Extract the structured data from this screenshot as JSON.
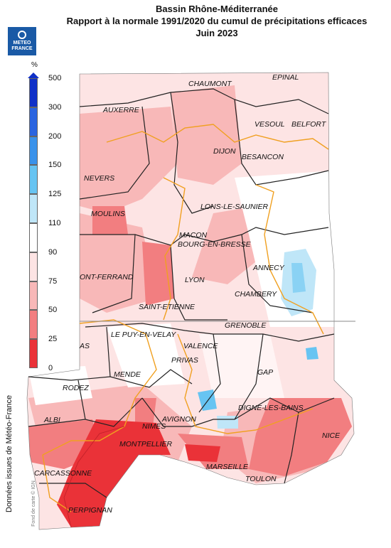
{
  "header": {
    "line1": "Bassin Rhône-Méditerranée",
    "line2": "Rapport à la normale 1991/2020 du cumul de précipitations efficaces",
    "line3": "Juin 2023"
  },
  "logo": {
    "line1": "METEO",
    "line2": "FRANCE"
  },
  "legend": {
    "unit": "%",
    "ticks": [
      "500",
      "300",
      "200",
      "150",
      "125",
      "110",
      "90",
      "75",
      "50",
      "25",
      "0"
    ],
    "classes": [
      {
        "label": "300-500",
        "color": "#1030c8"
      },
      {
        "label": "200-300",
        "color": "#2a64e0"
      },
      {
        "label": "150-200",
        "color": "#3a92ea"
      },
      {
        "label": "125-150",
        "color": "#67c4f2"
      },
      {
        "label": "110-125",
        "color": "#bfe6f8"
      },
      {
        "label": "90-110",
        "color": "#ffffff"
      },
      {
        "label": "75-90",
        "color": "#fde4e4"
      },
      {
        "label": "50-75",
        "color": "#f8b8b8"
      },
      {
        "label": "25-50",
        "color": "#f27e80"
      },
      {
        "label": "0-25",
        "color": "#ea3238"
      }
    ]
  },
  "side_text": "Données issues de Météo-France",
  "credit": "Fond de carte © IGN",
  "cities": [
    {
      "name": "EPINAL"
    },
    {
      "name": "CHAUMONT"
    },
    {
      "name": "AUXERRE"
    },
    {
      "name": "VESOUL"
    },
    {
      "name": "BELFORT"
    },
    {
      "name": "DIJON"
    },
    {
      "name": "BESANCON"
    },
    {
      "name": "NEVERS"
    },
    {
      "name": "LONS-LE-SAUNIER"
    },
    {
      "name": "MOULINS"
    },
    {
      "name": "MACON"
    },
    {
      "name": "BOURG-EN-BRESSE"
    },
    {
      "name": "ANNECY"
    },
    {
      "name": "ONT-FERRAND"
    },
    {
      "name": "LYON"
    },
    {
      "name": "CHAMBERY"
    },
    {
      "name": "SAINT-ETIENNE"
    },
    {
      "name": "GRENOBLE"
    },
    {
      "name": "LE PUY-EN-VELAY"
    },
    {
      "name": "VALENCE"
    },
    {
      "name": "AS"
    },
    {
      "name": "PRIVAS"
    },
    {
      "name": "GAP"
    },
    {
      "name": "MENDE"
    },
    {
      "name": "RODEZ"
    },
    {
      "name": "DIGNE-LES-BAINS"
    },
    {
      "name": "AVIGNON"
    },
    {
      "name": "ALBI"
    },
    {
      "name": "NIMES"
    },
    {
      "name": "NICE"
    },
    {
      "name": "MONTPELLIER"
    },
    {
      "name": "MARSEILLE"
    },
    {
      "name": "CARCASSONNE"
    },
    {
      "name": "TOULON"
    },
    {
      "name": "PERPIGNAN"
    }
  ]
}
